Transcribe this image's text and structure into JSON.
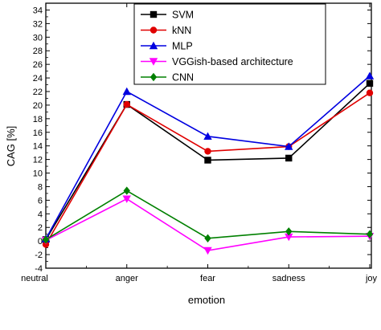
{
  "chart_data": {
    "type": "line",
    "xlabel": "emotion",
    "ylabel": "CAG [%]",
    "categories": [
      "neutral",
      "anger",
      "fear",
      "sadness",
      "joy"
    ],
    "ylim": [
      -4,
      35
    ],
    "yticks": [
      -4,
      -2,
      0,
      2,
      4,
      6,
      8,
      10,
      12,
      14,
      16,
      18,
      20,
      22,
      24,
      26,
      28,
      30,
      32,
      34
    ],
    "grid": false,
    "legend": "top-center",
    "series": [
      {
        "name": "SVM",
        "color": "#000000",
        "marker": "square",
        "values": [
          0.2,
          20.1,
          11.9,
          12.2,
          23.2
        ]
      },
      {
        "name": "kNN",
        "color": "#e00000",
        "marker": "circle",
        "values": [
          -0.5,
          20.1,
          13.2,
          13.9,
          21.8
        ]
      },
      {
        "name": "MLP",
        "color": "#0000e0",
        "marker": "triangle-up",
        "values": [
          0.3,
          22.0,
          15.4,
          13.9,
          24.3
        ]
      },
      {
        "name": "VGGish-based architecture",
        "color": "#ff00ff",
        "marker": "triangle-down",
        "values": [
          0.1,
          6.2,
          -1.4,
          0.6,
          0.7
        ]
      },
      {
        "name": "CNN",
        "color": "#008000",
        "marker": "diamond",
        "values": [
          0.2,
          7.4,
          0.4,
          1.4,
          1.0
        ]
      }
    ]
  }
}
